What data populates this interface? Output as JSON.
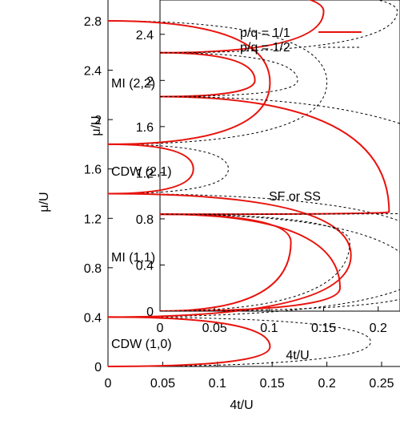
{
  "chart_data": [
    {
      "type": "line",
      "role": "main",
      "xlabel": "4t/U",
      "ylabel": "μ/U",
      "xlim": [
        0,
        0.25
      ],
      "ylim": [
        0,
        2.8
      ],
      "xticks": [
        "0",
        "0.05",
        "0.1",
        "0.15",
        "0.2",
        "0.25"
      ],
      "yticks": [
        "0",
        "0.4",
        "0.8",
        "1.2",
        "1.6",
        "2",
        "2.4",
        "2.8"
      ],
      "legend": {
        "placement": "top-right",
        "entries": [
          {
            "label": "p/q = 1/1",
            "style": "solid",
            "color": "#e8120c"
          },
          {
            "label": "p/q = 1/2",
            "style": "dashed",
            "color": "#000000"
          }
        ]
      },
      "annotations": [
        "MI (2,2)",
        "CDW (2,1)",
        "SF or SS",
        "MI (1,1)",
        "CDW (1,0)"
      ],
      "series": [
        {
          "name": "p/q = 1/1",
          "lobes": [
            {
              "y0": 0.0,
              "y1": 0.4,
              "tip": [
                0.148,
                0.16
              ]
            },
            {
              "y0": 0.4,
              "y1": 1.4,
              "tip": [
                0.222,
                0.9
              ]
            },
            {
              "y0": 1.4,
              "y1": 1.8,
              "tip": [
                0.078,
                1.6
              ]
            },
            {
              "y0": 1.8,
              "y1": 2.8,
              "tip": [
                0.148,
                2.3
              ]
            }
          ]
        },
        {
          "name": "p/q = 1/2",
          "lobes": [
            {
              "y0": 0.0,
              "y1": 0.4,
              "tip": [
                0.24,
                0.2
              ]
            },
            {
              "y0": 0.4,
              "y1": 1.4,
              "tip": [
                0.3,
                0.9
              ]
            },
            {
              "y0": 1.4,
              "y1": 1.8,
              "tip": [
                0.11,
                1.6
              ]
            },
            {
              "y0": 1.8,
              "y1": 2.8,
              "tip": [
                0.2,
                2.3
              ]
            }
          ]
        }
      ]
    },
    {
      "type": "line",
      "role": "inset",
      "xlabel": "4t/U",
      "ylabel": "μ/U",
      "xlim": [
        0,
        0.22
      ],
      "ylim": [
        0,
        2.6
      ],
      "xticks": [
        "0",
        "0.05",
        "0.1",
        "0.15",
        "0.2"
      ],
      "yticks": [
        "0",
        "0.4",
        "0.8",
        "1.2",
        "1.6",
        "2",
        "2.4"
      ],
      "series": [
        {
          "name": "p/q = 1/1",
          "lobes": [
            {
              "y0": 0.0,
              "y1": 0.84,
              "tip": [
                0.165,
                0.2
              ]
            },
            {
              "y0": 0.84,
              "y1": 1.86,
              "tip": [
                0.21,
                0.86
              ]
            },
            {
              "y0": 1.86,
              "y1": 2.24,
              "tip": [
                0.087,
                2.0
              ]
            },
            {
              "y0": 2.24,
              "y1": 2.8,
              "tip": [
                0.15,
                2.6
              ]
            },
            {
              "y0": 0.0,
              "y1": 0.84,
              "tip": [
                0.12,
                0.6
              ]
            }
          ]
        },
        {
          "name": "p/q = 1/2"
        }
      ]
    }
  ]
}
